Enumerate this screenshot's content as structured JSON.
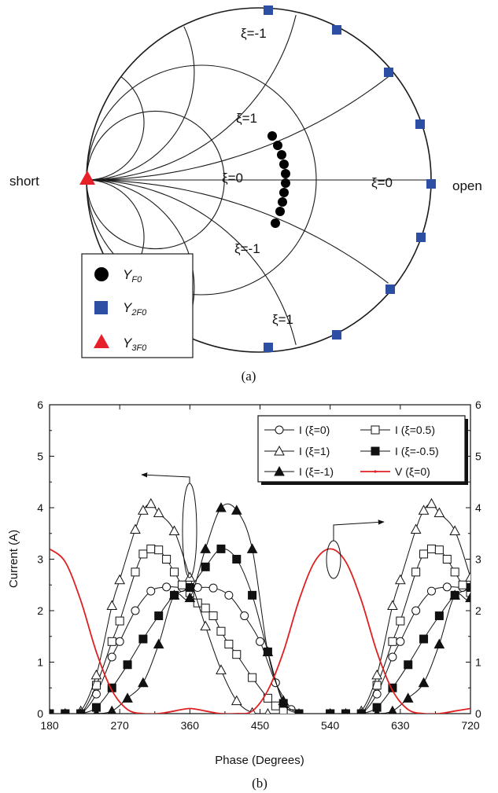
{
  "colors": {
    "circle": "#1a1a1a",
    "yf0": "#000000",
    "y2f0": "#2d4fa3",
    "y3f0": "#e8202a",
    "voltage": "#e02020"
  },
  "smith": {
    "caption": "(a)",
    "label_short": "short",
    "label_open": "open",
    "xi_labels": [
      {
        "text": "ξ=-1",
        "key": "outer-top"
      },
      {
        "text": "ξ=1",
        "key": "mid-top"
      },
      {
        "text": "ξ=0",
        "key": "center"
      },
      {
        "text": "ξ=0",
        "key": "right"
      },
      {
        "text": "ξ=-1",
        "key": "mid-bottom"
      },
      {
        "text": "ξ=1",
        "key": "outer-bottom"
      }
    ],
    "legend": [
      {
        "text": "Y",
        "sub": "F0",
        "marker": "circle"
      },
      {
        "text": "Y",
        "sub": "2F0",
        "marker": "square"
      },
      {
        "text": "Y",
        "sub": "3F0",
        "marker": "triangle"
      }
    ]
  },
  "chart_data": {
    "type": "line",
    "caption": "(b)",
    "xlabel": "Phase (Degrees)",
    "ylabel": "Current (A)",
    "xlim": [
      180,
      720
    ],
    "ylim": [
      0,
      6
    ],
    "y2lim": [
      0,
      6
    ],
    "xticks": [
      180,
      270,
      360,
      450,
      540,
      630,
      720
    ],
    "yticks": [
      0,
      1,
      2,
      3,
      4,
      5,
      6
    ],
    "legend_position": "top-right",
    "series": [
      {
        "name": "I (ξ=0)",
        "marker": "open-circle",
        "key": "i0",
        "x": [
          180,
          200,
          220,
          240,
          260,
          270,
          290,
          310,
          330,
          350,
          370,
          390,
          410,
          430,
          450,
          470,
          490
        ],
        "y": [
          0,
          0,
          0,
          0.38,
          1.1,
          1.4,
          2.0,
          2.38,
          2.46,
          2.45,
          2.45,
          2.44,
          2.3,
          1.9,
          1.4,
          0.6,
          0.08
        ]
      },
      {
        "name": "I (ξ=0.5)",
        "marker": "open-square",
        "key": "i05",
        "x": [
          180,
          200,
          220,
          240,
          260,
          270,
          290,
          300,
          310,
          320,
          330,
          340,
          350,
          360,
          370,
          380,
          390,
          400,
          410,
          420,
          440,
          460,
          470,
          480,
          490
        ],
        "y": [
          0,
          0,
          0,
          0.55,
          1.4,
          1.8,
          2.75,
          3.1,
          3.2,
          3.18,
          3.0,
          2.75,
          2.5,
          2.35,
          2.15,
          2.05,
          1.9,
          1.6,
          1.35,
          1.15,
          0.7,
          0.3,
          0.15,
          0.05,
          0
        ]
      },
      {
        "name": "I (ξ=1)",
        "marker": "open-triangle",
        "key": "i1",
        "x": [
          180,
          200,
          220,
          240,
          260,
          270,
          290,
          300,
          310,
          320,
          340,
          360,
          380,
          400,
          420,
          440,
          460
        ],
        "y": [
          0,
          0,
          0.05,
          0.75,
          2.1,
          2.6,
          3.58,
          3.95,
          4.08,
          3.9,
          3.55,
          2.65,
          1.7,
          0.85,
          0.25,
          0.02,
          0
        ]
      },
      {
        "name": "I (ξ=-0.5)",
        "marker": "filled-square",
        "key": "im05",
        "x": [
          180,
          200,
          220,
          240,
          260,
          280,
          300,
          320,
          340,
          360,
          380,
          400,
          420,
          440,
          460,
          480,
          500
        ],
        "y": [
          0,
          0,
          0,
          0.12,
          0.5,
          0.95,
          1.45,
          1.9,
          2.3,
          2.45,
          2.85,
          3.2,
          3.0,
          2.3,
          1.2,
          0.2,
          0
        ]
      },
      {
        "name": "I (ξ=-1)",
        "marker": "filled-triangle",
        "key": "im1",
        "x": [
          180,
          200,
          220,
          240,
          260,
          280,
          300,
          320,
          340,
          360,
          380,
          400,
          420,
          440,
          460,
          480,
          500
        ],
        "y": [
          0,
          0,
          0,
          0,
          0.05,
          0.3,
          0.6,
          1.35,
          2.3,
          2.25,
          3.2,
          4.0,
          3.95,
          3.2,
          1.2,
          0.25,
          0
        ]
      },
      {
        "name": "V (ξ=0)",
        "marker": "line",
        "key": "v0",
        "x": [
          180,
          200,
          220,
          240,
          260,
          280,
          300,
          320,
          340,
          360,
          380,
          400,
          420,
          440,
          460,
          480,
          500,
          520,
          540,
          560,
          580,
          600,
          620,
          640,
          660,
          680,
          700,
          720
        ],
        "y": [
          3.2,
          2.95,
          2.2,
          1.2,
          0.45,
          0.08,
          0,
          0,
          0.05,
          0.1,
          0.05,
          0,
          0,
          0.05,
          0.45,
          1.2,
          2.2,
          2.95,
          3.2,
          2.95,
          2.2,
          1.2,
          0.45,
          0.08,
          0,
          0,
          0.05,
          0.1
        ]
      }
    ]
  }
}
